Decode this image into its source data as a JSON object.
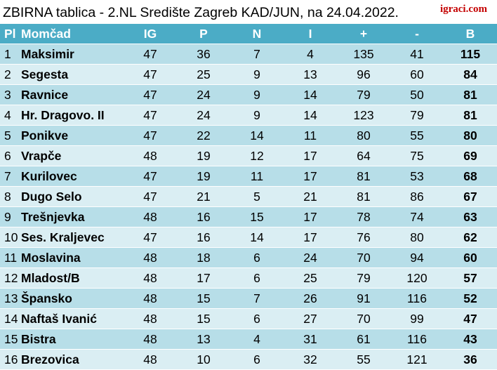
{
  "title": "ZBIRNA tablica - 2.NL Središte Zagreb KAD/JUN, na 24.04.2022.",
  "logo": "igraci.com",
  "headers": [
    "Pl",
    "Momčad",
    "IG",
    "P",
    "N",
    "I",
    "+",
    "-",
    "B"
  ],
  "rows": [
    [
      "1",
      "Maksimir",
      "47",
      "36",
      "7",
      "4",
      "135",
      "41",
      "115"
    ],
    [
      "2",
      "Segesta",
      "47",
      "25",
      "9",
      "13",
      "96",
      "60",
      "84"
    ],
    [
      "3",
      "Ravnice",
      "47",
      "24",
      "9",
      "14",
      "79",
      "50",
      "81"
    ],
    [
      "4",
      "Hr. Dragovo. II",
      "47",
      "24",
      "9",
      "14",
      "123",
      "79",
      "81"
    ],
    [
      "5",
      "Ponikve",
      "47",
      "22",
      "14",
      "11",
      "80",
      "55",
      "80"
    ],
    [
      "6",
      "Vrapče",
      "48",
      "19",
      "12",
      "17",
      "64",
      "75",
      "69"
    ],
    [
      "7",
      "Kurilovec",
      "47",
      "19",
      "11",
      "17",
      "81",
      "53",
      "68"
    ],
    [
      "8",
      "Dugo Selo",
      "47",
      "21",
      "5",
      "21",
      "81",
      "86",
      "67"
    ],
    [
      "9",
      "Trešnjevka",
      "48",
      "16",
      "15",
      "17",
      "78",
      "74",
      "63"
    ],
    [
      "10",
      "Ses. Kraljevec",
      "47",
      "16",
      "14",
      "17",
      "76",
      "80",
      "62"
    ],
    [
      "11",
      "Moslavina",
      "48",
      "18",
      "6",
      "24",
      "70",
      "94",
      "60"
    ],
    [
      "12",
      "Mladost/B",
      "48",
      "17",
      "6",
      "25",
      "79",
      "120",
      "57"
    ],
    [
      "13",
      "Špansko",
      "48",
      "15",
      "7",
      "26",
      "91",
      "116",
      "52"
    ],
    [
      "14",
      "Naftaš Ivanić",
      "48",
      "15",
      "6",
      "27",
      "70",
      "99",
      "47"
    ],
    [
      "15",
      "Bistra",
      "48",
      "13",
      "4",
      "31",
      "61",
      "116",
      "43"
    ],
    [
      "16",
      "Brezovica",
      "48",
      "10",
      "6",
      "32",
      "55",
      "121",
      "36"
    ]
  ]
}
